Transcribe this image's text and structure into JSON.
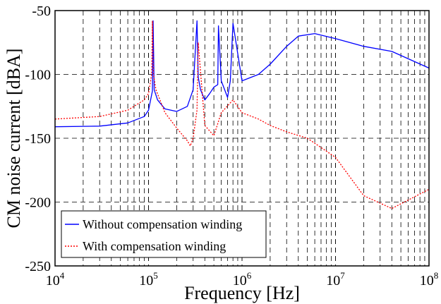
{
  "chart_data": {
    "type": "line",
    "title": "",
    "xlabel": "Frequency [Hz]",
    "ylabel": "CM noise current [dBA]",
    "x_scale": "log",
    "xlim": [
      10000,
      100000000
    ],
    "ylim": [
      -250,
      -50
    ],
    "x_ticks": [
      {
        "base": "10",
        "exp": "4"
      },
      {
        "base": "10",
        "exp": "5"
      },
      {
        "base": "10",
        "exp": "6"
      },
      {
        "base": "10",
        "exp": "7"
      },
      {
        "base": "10",
        "exp": "8"
      }
    ],
    "y_ticks": [
      "-50",
      "-100",
      "-150",
      "-200",
      "-250"
    ],
    "grid": "dashed",
    "legend_position": "bottom-left",
    "series": [
      {
        "name": "Without compensation winding",
        "color": "#0000ff",
        "line_style": "solid",
        "x": [
          10000,
          30000,
          60000,
          90000,
          100000,
          110000,
          112000,
          115000,
          125000,
          150000,
          200000,
          260000,
          300000,
          330000,
          340000,
          360000,
          400000,
          450000,
          500000,
          550000,
          560000,
          600000,
          700000,
          750000,
          800000,
          1000000,
          1500000,
          2000000,
          3000000,
          4000000,
          6000000,
          10000000,
          20000000,
          40000000,
          100000000
        ],
        "y": [
          -141,
          -140.5,
          -138,
          -133,
          -128,
          -113,
          -58,
          -112,
          -120,
          -127,
          -129,
          -125,
          -112,
          -58,
          -102,
          -112,
          -120,
          -115,
          -110,
          -108,
          -62,
          -105,
          -118,
          -105,
          -60,
          -105,
          -100,
          -92,
          -78,
          -70,
          -68,
          -72,
          -78,
          -82,
          -95
        ]
      },
      {
        "name": "With compensation winding",
        "color": "#ff0000",
        "line_style": "dotted",
        "x": [
          10000,
          30000,
          60000,
          90000,
          100000,
          108000,
          110000,
          113000,
          120000,
          150000,
          200000,
          260000,
          280000,
          300000,
          330000,
          340000,
          400000,
          500000,
          600000,
          800000,
          1000000,
          1500000,
          2000000,
          3000000,
          5000000,
          10000000,
          20000000,
          40000000,
          100000000
        ],
        "y": [
          -135,
          -133,
          -128,
          -120,
          -115,
          -100,
          -58,
          -100,
          -112,
          -130,
          -142,
          -152,
          -156,
          -150,
          -128,
          -75,
          -140,
          -148,
          -130,
          -120,
          -130,
          -135,
          -140,
          -145,
          -150,
          -165,
          -195,
          -205,
          -190
        ]
      }
    ]
  }
}
